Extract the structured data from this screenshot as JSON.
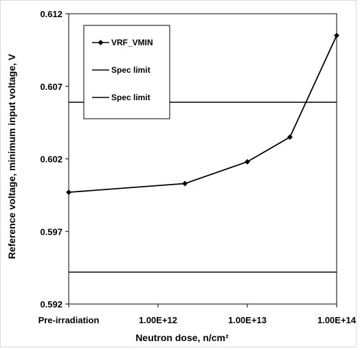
{
  "chart_data": {
    "type": "line",
    "xlabel": "Neutron dose, n/cm²",
    "ylabel": "Reference voltage, minimum input  voltage, V",
    "ylim": [
      0.592,
      0.612
    ],
    "y_ticks": [
      "0.612",
      "0.607",
      "0.602",
      "0.597",
      "0.592"
    ],
    "y_tick_values": [
      0.612,
      0.607,
      0.602,
      0.597,
      0.592
    ],
    "x_scale": "log",
    "x_ticks": [
      "Pre-irradiation",
      "1.00E+12",
      "1.00E+13",
      "1.00E+14"
    ],
    "x_tick_values": [
      "Pre-irradiation",
      1000000000000.0,
      10000000000000.0,
      100000000000000.0
    ],
    "grid": false,
    "legend_position": "top-left",
    "series": [
      {
        "name": "VRF_VMIN",
        "marker": "diamond",
        "color": "#000000",
        "points": [
          {
            "x": "Pre-irradiation",
            "y": 0.5997
          },
          {
            "x": 2000000000000.0,
            "y": 0.6003
          },
          {
            "x": 10000000000000.0,
            "y": 0.6018
          },
          {
            "x": 30000000000000.0,
            "y": 0.6035
          },
          {
            "x": 100000000000000.0,
            "y": 0.6105
          }
        ]
      },
      {
        "name": "Spec limit",
        "marker": "none",
        "color": "#000000",
        "value": 0.6059
      },
      {
        "name": "Spec limit",
        "marker": "none",
        "color": "#000000",
        "value": 0.5942
      }
    ]
  }
}
